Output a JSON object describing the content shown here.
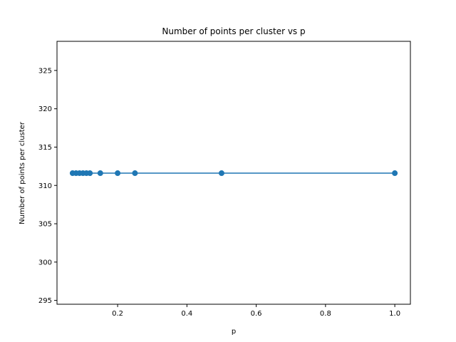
{
  "chart_data": {
    "type": "line",
    "title": "Number of points per cluster vs p",
    "xlabel": "p",
    "ylabel": "Number of points per cluster",
    "xlim": [
      0.025,
      1.045
    ],
    "ylim": [
      294.5,
      328.8
    ],
    "xticks": [
      0.2,
      0.4,
      0.6,
      0.8,
      1.0
    ],
    "xtick_labels": [
      "0.2",
      "0.4",
      "0.6",
      "0.8",
      "1.0"
    ],
    "yticks": [
      295,
      300,
      305,
      310,
      315,
      320,
      325
    ],
    "ytick_labels": [
      "295",
      "300",
      "305",
      "310",
      "315",
      "320",
      "325"
    ],
    "grid": false,
    "series": [
      {
        "color": "#1f77b4",
        "marker": "circle",
        "x": [
          0.07,
          0.08,
          0.09,
          0.1,
          0.11,
          0.12,
          0.15,
          0.2,
          0.25,
          0.5,
          1.0
        ],
        "y": [
          311.6,
          311.6,
          311.6,
          311.6,
          311.6,
          311.6,
          311.6,
          311.6,
          311.6,
          311.6,
          311.6
        ]
      }
    ]
  }
}
